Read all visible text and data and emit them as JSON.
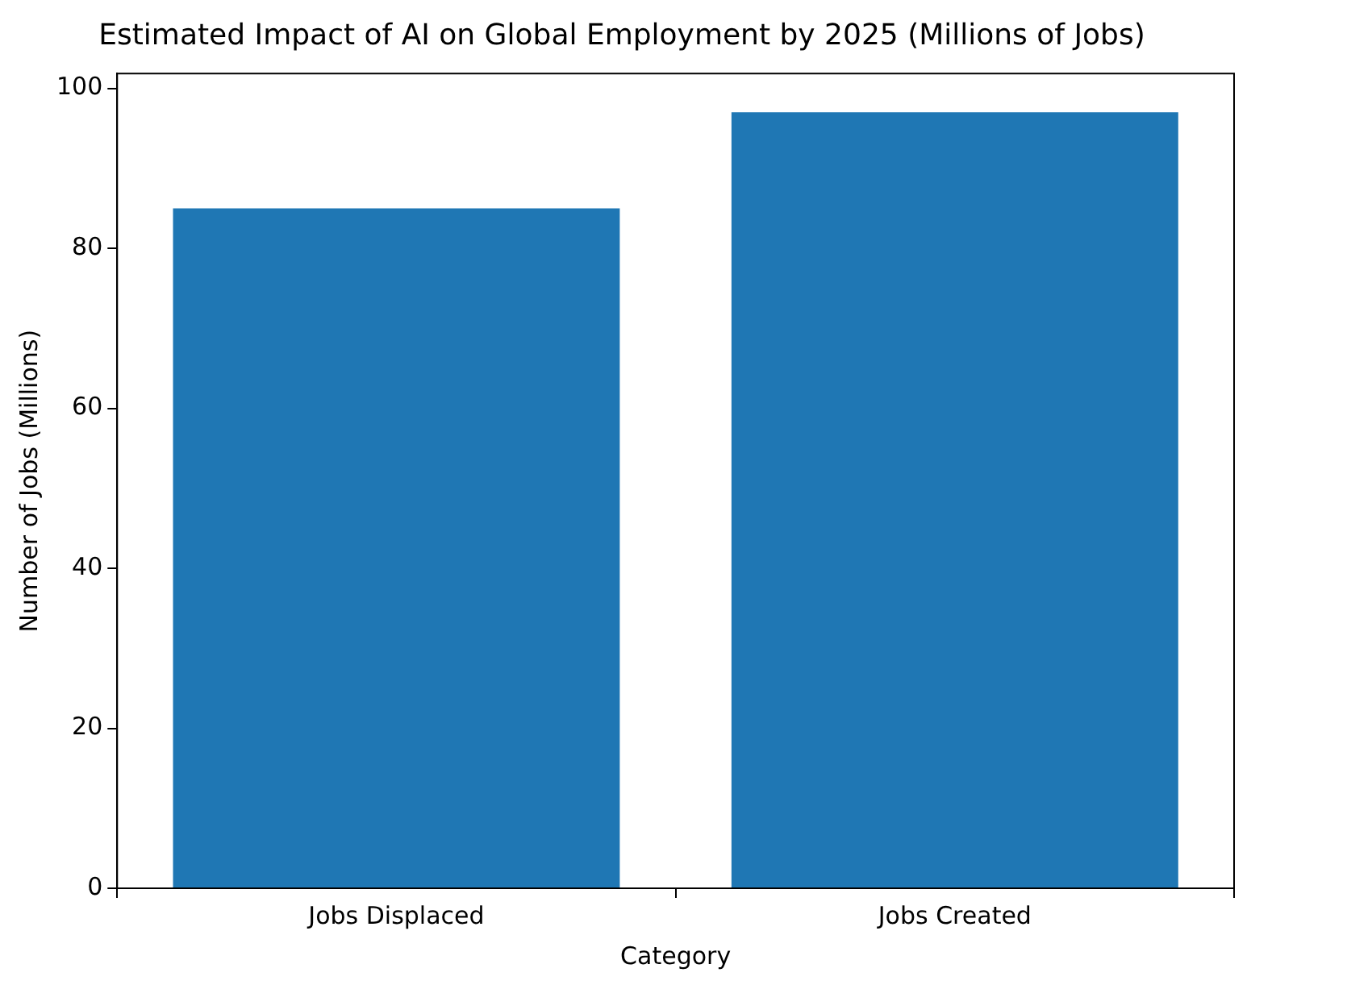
{
  "chart_data": {
    "type": "bar",
    "title": "Estimated Impact of AI on Global Employment by 2025 (Millions of Jobs)",
    "xlabel": "Category",
    "ylabel": "Number of Jobs (Millions)",
    "categories": [
      "Jobs Displaced",
      "Jobs Created"
    ],
    "values": [
      85,
      97
    ],
    "color": "#1f77b4",
    "ylim": [
      0,
      101.85
    ],
    "yticks": [
      0,
      20,
      40,
      60,
      80,
      100
    ],
    "grid": false,
    "legend": false
  }
}
